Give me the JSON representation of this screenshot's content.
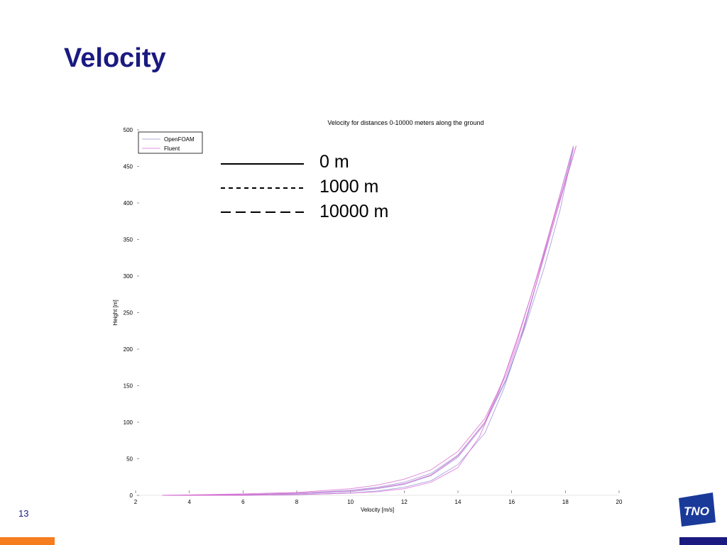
{
  "slide": {
    "title": "Velocity",
    "page_number": "13"
  },
  "annotation": {
    "items": [
      {
        "label": "0 m",
        "dash": "solid"
      },
      {
        "label": "1000 m",
        "dash": "dotted"
      },
      {
        "label": "10000 m",
        "dash": "dashed"
      }
    ]
  },
  "colors": {
    "title": "#1a1a80",
    "accent_orange": "#f57d1f",
    "accent_navy": "#1a1a80",
    "openfoam": "#9b8fd8",
    "fluent": "#d96ad0"
  },
  "logo": {
    "icon": "tno-logo",
    "text": "TNO"
  },
  "chart_data": {
    "type": "line",
    "title": "Velocity for distances 0-10000 meters along the ground",
    "xlabel": "Velocity [m/s]",
    "ylabel": "Height [m]",
    "xlim": [
      2,
      20
    ],
    "ylim": [
      0,
      500
    ],
    "xticks": [
      2,
      4,
      6,
      8,
      10,
      12,
      14,
      16,
      18,
      20
    ],
    "yticks": [
      0,
      50,
      100,
      150,
      200,
      250,
      300,
      350,
      400,
      450,
      500
    ],
    "grid": false,
    "legend": {
      "position": "top-left",
      "entries": [
        "OpenFOAM",
        "Fluent"
      ]
    },
    "series": [
      {
        "name": "OpenFOAM",
        "distance": "0 m",
        "x": [
          3,
          6,
          8,
          10,
          11,
          12,
          13,
          14,
          15,
          15.8,
          16.5,
          17.2,
          17.8,
          18.3
        ],
        "y": [
          0,
          1,
          3,
          7,
          11,
          18,
          30,
          55,
          100,
          160,
          230,
          310,
          390,
          475
        ]
      },
      {
        "name": "OpenFOAM",
        "distance": "1000 m",
        "x": [
          3,
          6,
          8,
          10,
          11,
          12,
          13,
          14,
          15,
          15.8,
          16.4,
          17.0,
          17.7,
          18.3
        ],
        "y": [
          0,
          1,
          2,
          5,
          9,
          15,
          27,
          52,
          98,
          158,
          220,
          300,
          390,
          475
        ]
      },
      {
        "name": "OpenFOAM",
        "distance": "10000 m",
        "x": [
          3,
          6,
          8,
          10,
          11,
          12,
          13,
          14,
          15,
          15.7,
          16.3,
          17.0,
          17.6,
          18.3
        ],
        "y": [
          0,
          0,
          1,
          3,
          6,
          11,
          20,
          42,
          85,
          145,
          210,
          300,
          385,
          478
        ]
      },
      {
        "name": "Fluent",
        "distance": "0 m",
        "x": [
          3,
          6,
          8,
          10,
          11,
          12,
          13,
          14,
          15,
          15.8,
          16.4,
          17.0,
          17.7,
          18.4
        ],
        "y": [
          0,
          2,
          4,
          9,
          14,
          22,
          35,
          60,
          105,
          165,
          225,
          300,
          390,
          478
        ]
      },
      {
        "name": "Fluent",
        "distance": "1000 m",
        "x": [
          3,
          6,
          8,
          10,
          11,
          12,
          13,
          14,
          15,
          15.7,
          16.3,
          17.0,
          17.7,
          18.4
        ],
        "y": [
          0,
          1,
          3,
          6,
          10,
          16,
          28,
          54,
          100,
          160,
          225,
          305,
          395,
          478
        ]
      },
      {
        "name": "Fluent",
        "distance": "10000 m",
        "x": [
          3,
          6,
          8,
          10,
          11,
          12,
          13,
          14,
          14.8,
          15.5,
          16.2,
          16.9,
          17.6,
          18.3
        ],
        "y": [
          0,
          0,
          1,
          3,
          5,
          9,
          18,
          38,
          80,
          140,
          210,
          295,
          385,
          478
        ]
      }
    ]
  }
}
